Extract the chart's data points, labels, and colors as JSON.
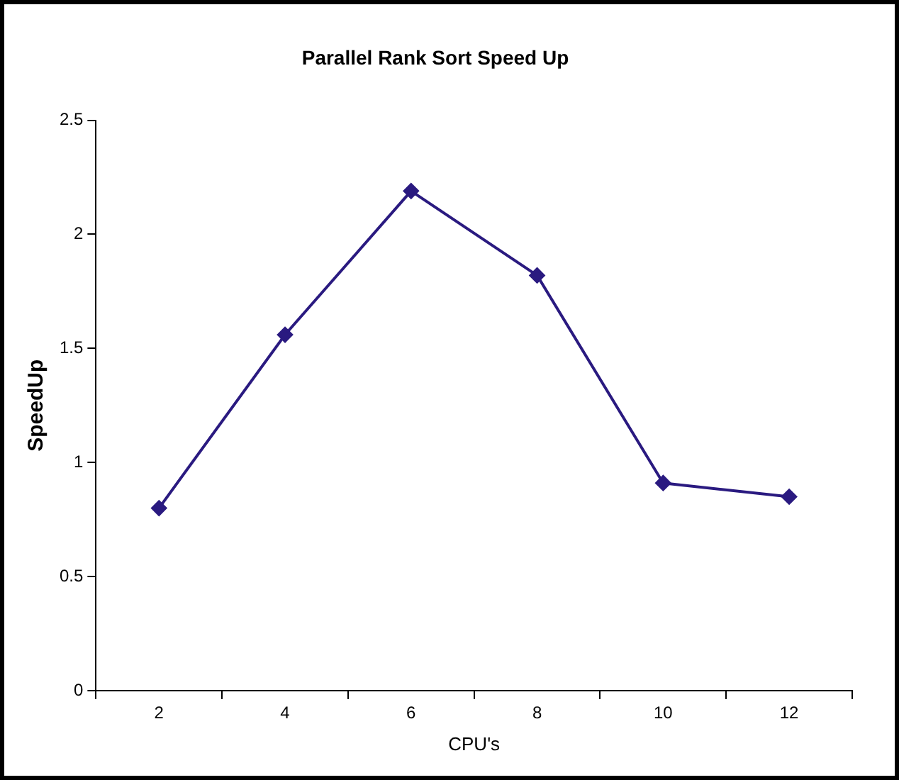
{
  "chart_data": {
    "type": "line",
    "title": "Parallel Rank Sort Speed Up",
    "xlabel": "CPU's",
    "ylabel": "SpeedUp",
    "categories": [
      "2",
      "4",
      "6",
      "8",
      "10",
      "12"
    ],
    "series": [
      {
        "color": "#2a1a80",
        "values": [
          0.8,
          1.56,
          2.19,
          1.82,
          0.91,
          0.85
        ]
      }
    ],
    "ylim": [
      0,
      2.5
    ],
    "yticks": [
      0,
      0.5,
      1,
      1.5,
      2,
      2.5
    ],
    "grid": false,
    "legend": false,
    "marker": "diamond",
    "line_style": "solid"
  }
}
